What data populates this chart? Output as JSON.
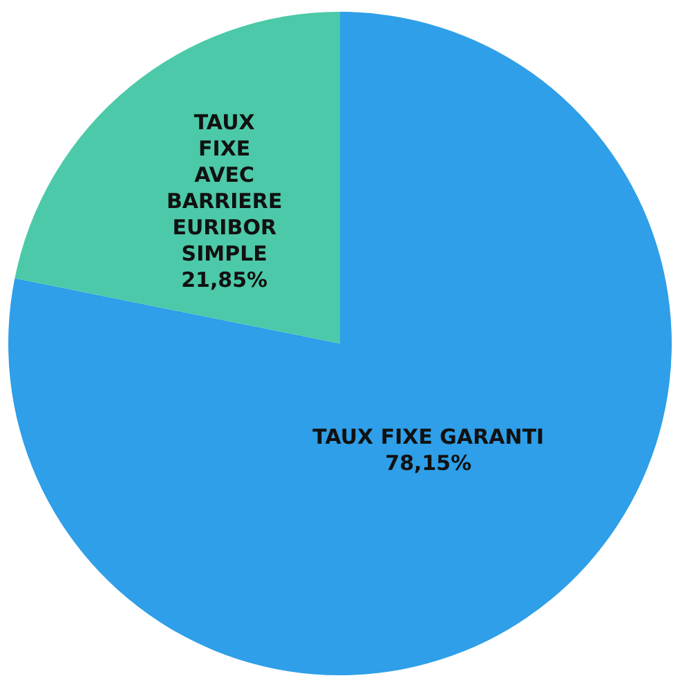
{
  "chart_data": {
    "type": "pie",
    "categories": [
      "TAUX FIXE GARANTI",
      "TAUX FIXE AVEC BARRIERE EURIBOR SIMPLE"
    ],
    "values": [
      78.15,
      21.85
    ],
    "colors": [
      "#2e9fe8",
      "#4cc9a8"
    ],
    "value_labels": [
      "78,15%",
      "21,85%"
    ],
    "legend": false
  }
}
